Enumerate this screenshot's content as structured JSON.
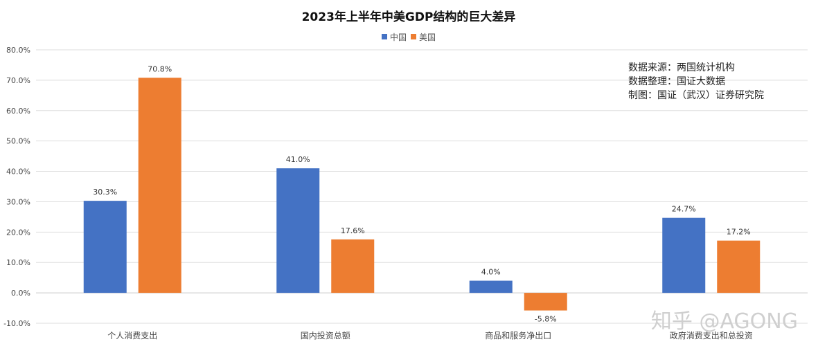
{
  "chart_data": {
    "type": "bar",
    "title": "2023年上半年中美GDP结构的巨大差异",
    "categories": [
      "个人消费支出",
      "国内投资总额",
      "商品和服务净出口",
      "政府消费支出和总投资"
    ],
    "series": [
      {
        "name": "中国",
        "color": "#4472c4",
        "values": [
          30.3,
          41.0,
          4.0,
          24.7
        ]
      },
      {
        "name": "美国",
        "color": "#ed7d31",
        "values": [
          70.8,
          17.6,
          -5.8,
          17.2
        ]
      }
    ],
    "data_labels": [
      [
        "30.3%",
        "41.0%",
        "4.0%",
        "24.7%"
      ],
      [
        "70.8%",
        "17.6%",
        "-5.8%",
        "17.2%"
      ]
    ],
    "ylim": [
      -10,
      80
    ],
    "yticks": [
      -10,
      0,
      10,
      20,
      30,
      40,
      50,
      60,
      70,
      80
    ],
    "ytick_labels": [
      "-10.0%",
      "0.0%",
      "10.0%",
      "20.0%",
      "30.0%",
      "40.0%",
      "50.0%",
      "60.0%",
      "70.0%",
      "80.0%"
    ],
    "grid": true,
    "legend_position": "top-center",
    "xlabel": "",
    "ylabel": ""
  },
  "annotations": {
    "source": "数据来源：两国统计机构",
    "compiled": "数据整理：国证大数据",
    "made_by": "制图：国证（武汉）证券研究院"
  },
  "watermark": "知乎 @AGONG"
}
